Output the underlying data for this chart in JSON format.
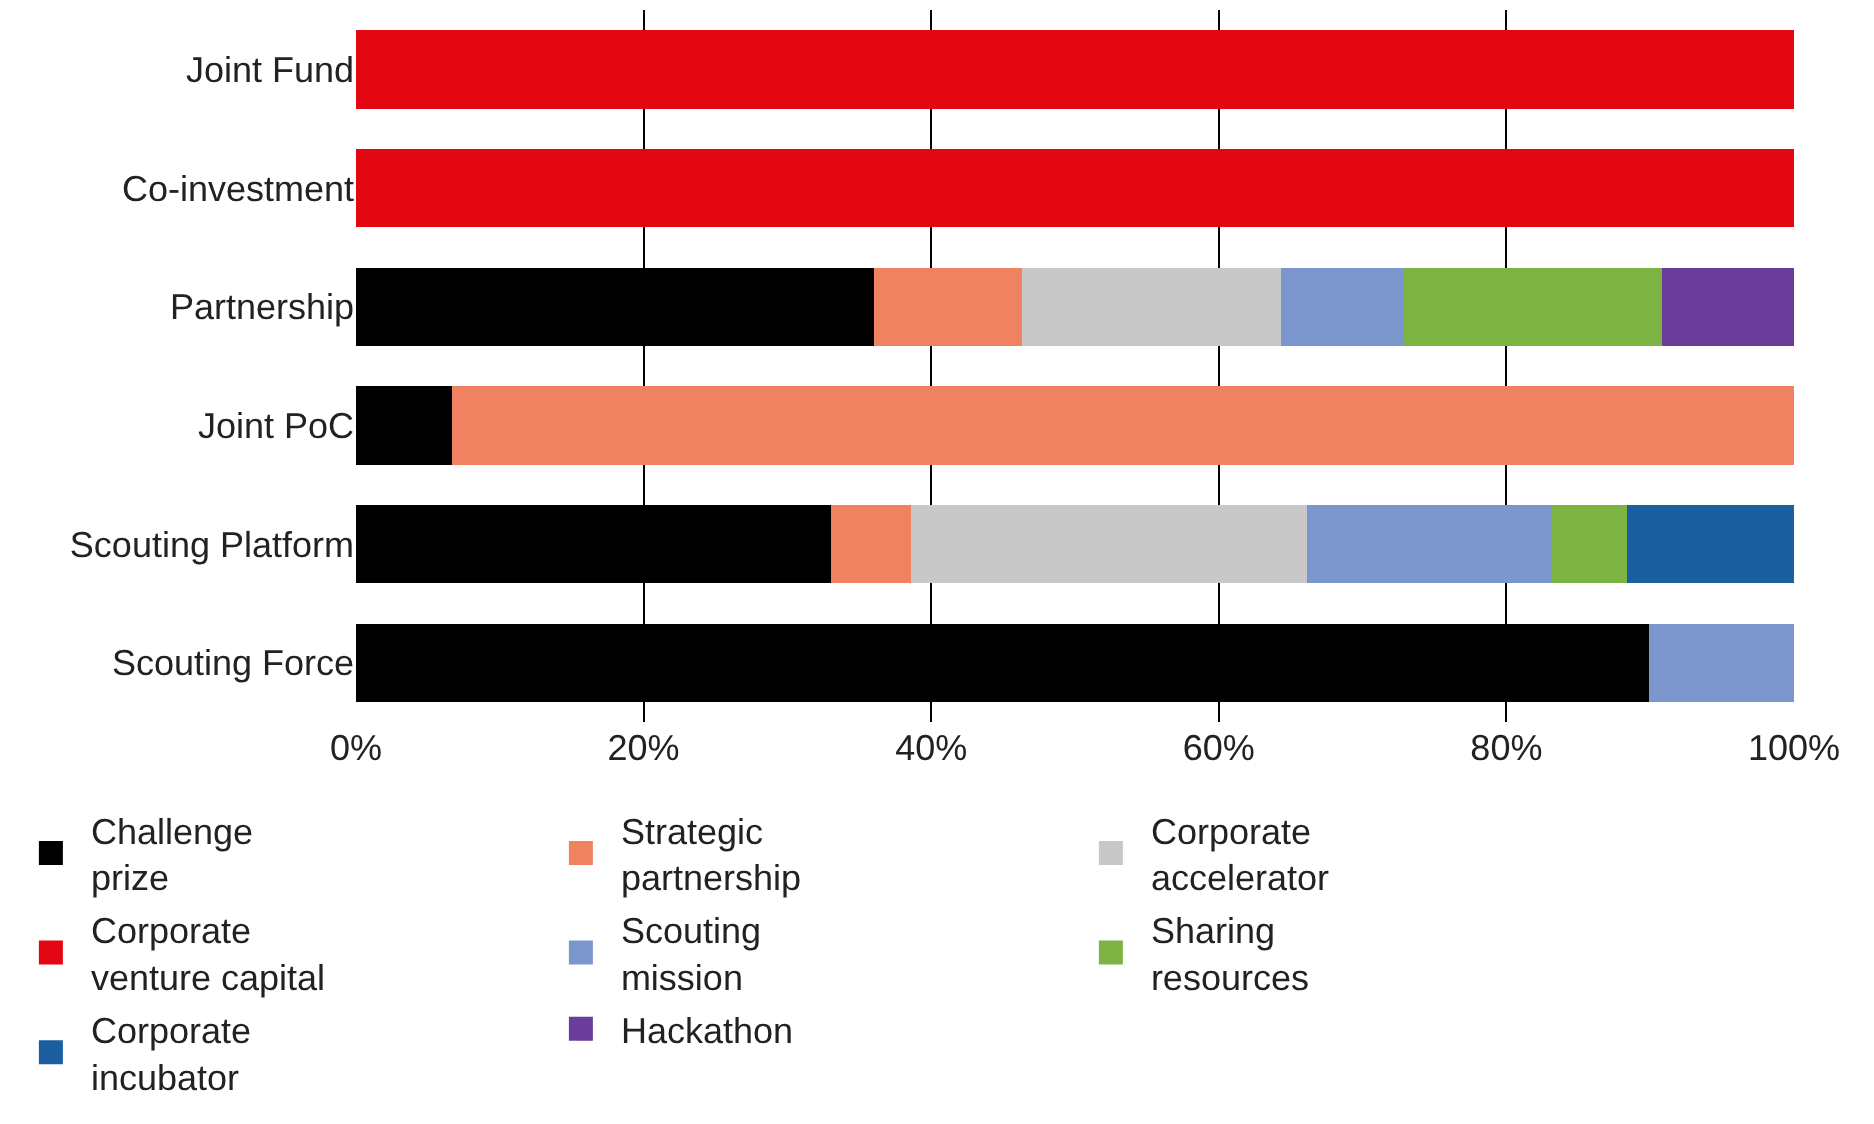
{
  "chart_data": {
    "type": "bar",
    "orientation": "horizontal",
    "stacked": true,
    "categories": [
      "Joint Fund",
      "Co-investment",
      "Partnership",
      "Joint PoC",
      "Scouting Platform",
      "Scouting Force"
    ],
    "series": [
      {
        "name": "Challenge prize",
        "color": "#000000",
        "values": [
          null,
          null,
          36.0,
          6.7,
          33.0,
          89.9
        ]
      },
      {
        "name": "Strategic partnership",
        "color": "#f08262",
        "values": [
          null,
          null,
          10.3,
          93.3,
          5.6,
          null
        ]
      },
      {
        "name": "Corporate accelerator",
        "color": "#c8c8c8",
        "values": [
          null,
          null,
          18.0,
          null,
          27.5,
          null
        ]
      },
      {
        "name": "Corporate venture capital",
        "color": "#e30613",
        "values": [
          100,
          100,
          null,
          null,
          null,
          null
        ]
      },
      {
        "name": "Scouting mission",
        "color": "#7b96cc",
        "values": [
          null,
          null,
          8.5,
          null,
          17.1,
          10.1
        ]
      },
      {
        "name": "Sharing resources",
        "color": "#7cb342",
        "values": [
          null,
          null,
          18.0,
          null,
          5.2,
          null
        ]
      },
      {
        "name": "Corporate incubator",
        "color": "#1a5fa0",
        "values": [
          null,
          null,
          null,
          null,
          11.6,
          null
        ]
      },
      {
        "name": "Hackathon",
        "color": "#6a3d9a",
        "values": [
          null,
          null,
          9.2,
          null,
          null,
          null
        ]
      }
    ],
    "xlim": [
      0,
      100
    ],
    "xticks": [
      {
        "value": 0,
        "label": "0%"
      },
      {
        "value": 20,
        "label": "20%"
      },
      {
        "value": 40,
        "label": "40%"
      },
      {
        "value": 60,
        "label": "60%"
      },
      {
        "value": 80,
        "label": "80%"
      },
      {
        "value": 100,
        "label": "100%"
      }
    ],
    "grid": "x",
    "legend": "bottom"
  }
}
